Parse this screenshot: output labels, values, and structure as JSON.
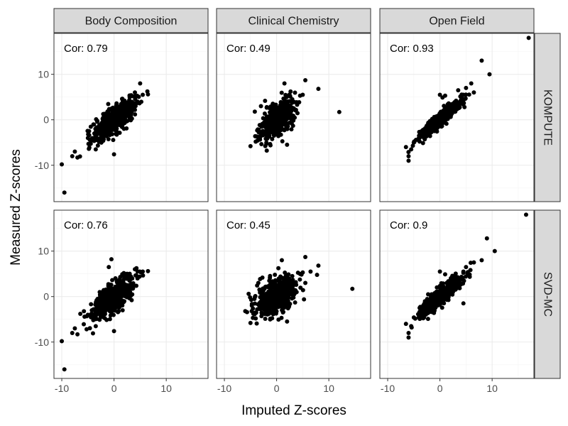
{
  "chart_data": {
    "type": "scatter",
    "xlabel": "Imputed Z-scores",
    "ylabel": "Measured Z-scores",
    "xlim": [
      -11.5,
      18
    ],
    "ylim": [
      -18,
      19
    ],
    "x_ticks": [
      -10,
      0,
      10
    ],
    "y_ticks": [
      -10,
      0,
      10
    ],
    "grid": true,
    "columns": [
      "Body Composition",
      "Clinical Chemistry",
      "Open Field"
    ],
    "rows": [
      "KOMPUTE",
      "SVD-MC"
    ],
    "panels": [
      {
        "row": "KOMPUTE",
        "column": "Body Composition",
        "cor": "Cor: 0.79",
        "cluster": {
          "cx": 0,
          "cy": 0,
          "sx": 2.0,
          "sy": 2.2,
          "rho": 0.75,
          "n": 520
        },
        "points": [
          [
            -9.5,
            -16
          ],
          [
            -10,
            -9.8
          ],
          [
            -8,
            -8
          ],
          [
            -7.5,
            -7
          ],
          [
            -7,
            -8.3
          ],
          [
            -5,
            -4
          ],
          [
            -4,
            -4.5
          ],
          [
            -3.5,
            -6.5
          ],
          [
            0,
            -7.6
          ],
          [
            -3,
            -3
          ],
          [
            3,
            5
          ],
          [
            4,
            6
          ],
          [
            4.5,
            4
          ],
          [
            5.5,
            5.5
          ],
          [
            5,
            8
          ],
          [
            6.5,
            5.6
          ],
          [
            3.5,
            5.2
          ],
          [
            2,
            4.2
          ],
          [
            4.2,
            3.5
          ]
        ]
      },
      {
        "row": "KOMPUTE",
        "column": "Clinical Chemistry",
        "cor": "Cor: 0.49",
        "cluster": {
          "cx": 0,
          "cy": 0,
          "sx": 1.5,
          "sy": 2.0,
          "rho": 0.5,
          "n": 560
        },
        "points": [
          [
            12,
            1.7
          ],
          [
            8,
            6.8
          ],
          [
            5.5,
            8.7
          ],
          [
            5,
            5.5
          ],
          [
            4.5,
            5.3
          ],
          [
            1.5,
            8
          ],
          [
            -4,
            -4.8
          ],
          [
            -5,
            -5.8
          ],
          [
            -3,
            3
          ],
          [
            2,
            -5.5
          ],
          [
            3,
            4.5
          ]
        ]
      },
      {
        "row": "KOMPUTE",
        "column": "Open Field",
        "cor": "Cor: 0.93",
        "cluster": {
          "cx": 0,
          "cy": 0,
          "sx": 2.0,
          "sy": 2.1,
          "rho": 0.93,
          "n": 500
        },
        "points": [
          [
            17,
            18
          ],
          [
            8,
            13
          ],
          [
            9.5,
            10
          ],
          [
            6,
            8
          ],
          [
            5,
            7
          ],
          [
            6.5,
            6
          ],
          [
            -6,
            -9
          ],
          [
            -6,
            -8
          ],
          [
            -6.5,
            -6
          ],
          [
            -5.5,
            -6.5
          ],
          [
            4.5,
            5.5
          ],
          [
            3.5,
            6.5
          ],
          [
            0,
            5.5
          ],
          [
            0.5,
            4.9
          ],
          [
            1,
            5.3
          ],
          [
            2.5,
            3.5
          ],
          [
            -5,
            -5
          ]
        ]
      },
      {
        "row": "SVD-MC",
        "column": "Body Composition",
        "cor": "Cor: 0.76",
        "cluster": {
          "cx": 0,
          "cy": 0,
          "sx": 2.0,
          "sy": 2.2,
          "rho": 0.72,
          "n": 520
        },
        "points": [
          [
            -9.5,
            -16
          ],
          [
            -10,
            -9.8
          ],
          [
            -8,
            -8
          ],
          [
            -7.5,
            -7
          ],
          [
            -7,
            -8.3
          ],
          [
            -5,
            -4
          ],
          [
            -4,
            -4.5
          ],
          [
            -3.5,
            -6.5
          ],
          [
            0,
            -7.6
          ],
          [
            -3,
            -3
          ],
          [
            3,
            5
          ],
          [
            4,
            6
          ],
          [
            4.5,
            4
          ],
          [
            5.5,
            5.5
          ],
          [
            6.5,
            5.6
          ],
          [
            -0.5,
            8.2
          ],
          [
            -1,
            6.5
          ],
          [
            2.5,
            5
          ]
        ]
      },
      {
        "row": "SVD-MC",
        "column": "Clinical Chemistry",
        "cor": "Cor: 0.45",
        "cluster": {
          "cx": 0,
          "cy": 0,
          "sx": 1.9,
          "sy": 2.0,
          "rho": 0.45,
          "n": 580
        },
        "points": [
          [
            14.5,
            1.7
          ],
          [
            8,
            6.8
          ],
          [
            5.5,
            8.7
          ],
          [
            6.5,
            5.5
          ],
          [
            5,
            5.3
          ],
          [
            1,
            8
          ],
          [
            -5,
            -5.8
          ],
          [
            -4,
            -4.8
          ],
          [
            -6,
            -3.2
          ],
          [
            -3.5,
            3
          ],
          [
            3,
            4.5
          ],
          [
            2,
            -5.5
          ],
          [
            5.5,
            3
          ]
        ]
      },
      {
        "row": "SVD-MC",
        "column": "Open Field",
        "cor": "Cor: 0.9",
        "cluster": {
          "cx": 0,
          "cy": 0,
          "sx": 2.0,
          "sy": 2.1,
          "rho": 0.9,
          "n": 500
        },
        "points": [
          [
            16.5,
            18
          ],
          [
            9,
            12.8
          ],
          [
            10.5,
            10
          ],
          [
            8,
            8
          ],
          [
            6.5,
            7.5
          ],
          [
            5,
            6.5
          ],
          [
            -6,
            -9
          ],
          [
            -6,
            -8
          ],
          [
            -6.5,
            -6
          ],
          [
            -5.5,
            -6.5
          ],
          [
            4.5,
            5.5
          ],
          [
            0,
            5.5
          ],
          [
            1,
            4.9
          ],
          [
            2.5,
            3.5
          ],
          [
            4.5,
            -1.5
          ],
          [
            -4,
            -4.5
          ]
        ]
      }
    ]
  }
}
